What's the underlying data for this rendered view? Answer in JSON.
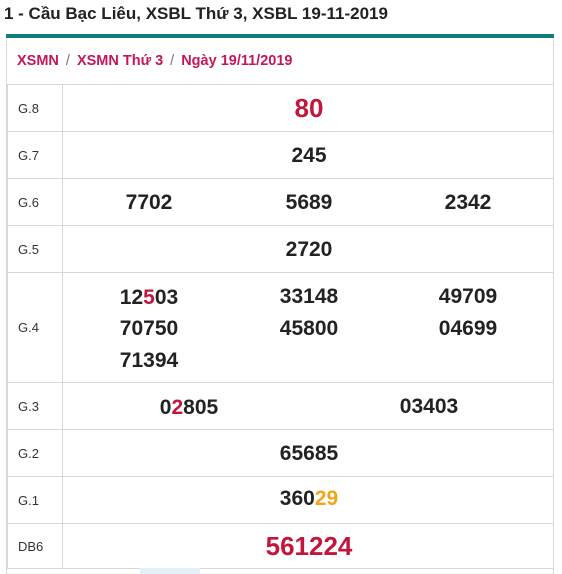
{
  "page": {
    "title": "1 - Cầu Bạc Liêu, XSBL Thứ 3, XSBL 19-11-2019"
  },
  "breadcrumb": {
    "items": [
      "XSMN",
      "XSMN Thứ 3",
      "Ngày 19/11/2019"
    ],
    "separator": "/"
  },
  "colors": {
    "accent": "#0c7e7c",
    "breadcrumb": "#c2185b",
    "special": "#c2163c",
    "highlight": "#f2a51a"
  },
  "results": {
    "g8": {
      "label": "G.8",
      "numbers": [
        "80"
      ]
    },
    "g7": {
      "label": "G.7",
      "numbers": [
        "245"
      ]
    },
    "g6": {
      "label": "G.6",
      "numbers": [
        "7702",
        "5689",
        "2342"
      ]
    },
    "g5": {
      "label": "G.5",
      "numbers": [
        "2720"
      ]
    },
    "g4": {
      "label": "G.4",
      "numbers": [
        {
          "pre": "12",
          "hl": "5",
          "post": "03"
        },
        "33148",
        "49709",
        "70750",
        "45800",
        "04699",
        "71394"
      ]
    },
    "g3": {
      "label": "G.3",
      "numbers": [
        {
          "pre": "0",
          "hl": "2",
          "post": "805"
        },
        "03403"
      ]
    },
    "g2": {
      "label": "G.2",
      "numbers": [
        "65685"
      ]
    },
    "g1": {
      "label": "G.1",
      "numbers": [
        {
          "pre": "360",
          "hl": "29"
        }
      ]
    },
    "db": {
      "label": "DB6",
      "numbers": [
        "561224"
      ]
    }
  }
}
